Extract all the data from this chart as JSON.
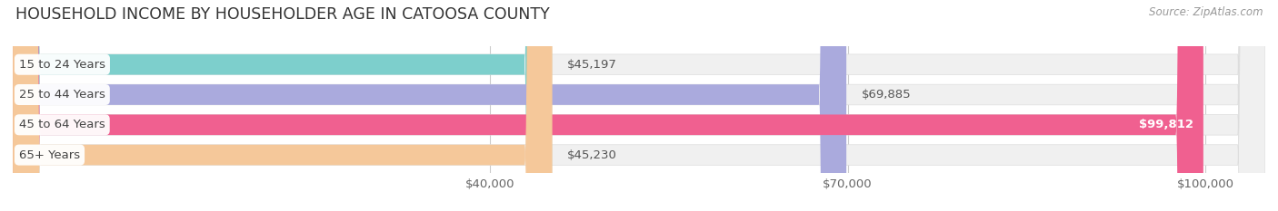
{
  "title": "HOUSEHOLD INCOME BY HOUSEHOLDER AGE IN CATOOSA COUNTY",
  "source": "Source: ZipAtlas.com",
  "categories": [
    "15 to 24 Years",
    "25 to 44 Years",
    "45 to 64 Years",
    "65+ Years"
  ],
  "values": [
    45197,
    69885,
    99812,
    45230
  ],
  "bar_colors": [
    "#7dcfcc",
    "#aaaadd",
    "#f06090",
    "#f5c89a"
  ],
  "value_labels": [
    "$45,197",
    "$69,885",
    "$99,812",
    "$45,230"
  ],
  "x_ticks": [
    40000,
    70000,
    100000
  ],
  "x_tick_labels": [
    "$40,000",
    "$70,000",
    "$100,000"
  ],
  "xmin": 0,
  "xmax": 105000,
  "grid_color": "#cccccc",
  "bg_track_color": "#f0f0f0",
  "title_fontsize": 12.5,
  "label_fontsize": 9.5,
  "source_fontsize": 8.5,
  "value_fontsize": 9.5,
  "background_color": "#ffffff"
}
